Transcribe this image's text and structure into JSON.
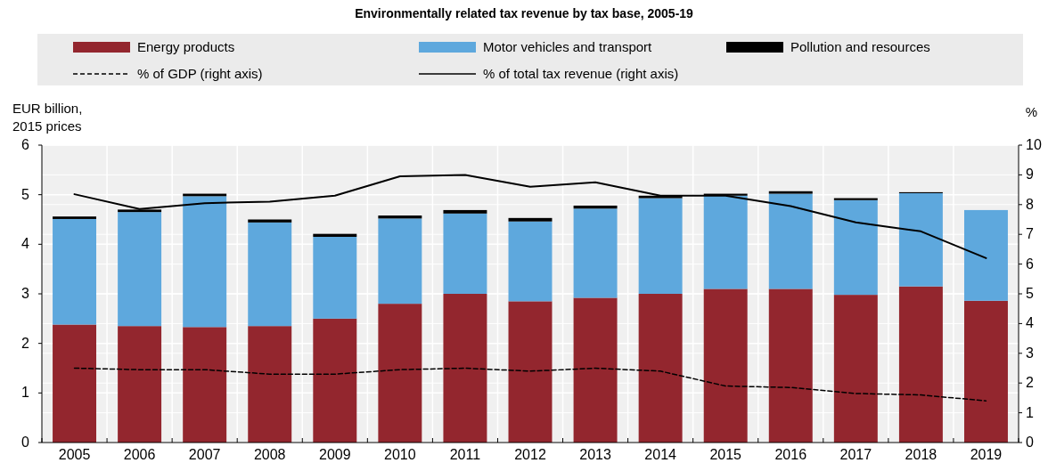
{
  "chart_data": {
    "type": "bar",
    "title": "Environmentally related tax revenue by tax base, 2005-19",
    "categories": [
      "2005",
      "2006",
      "2007",
      "2008",
      "2009",
      "2010",
      "2011",
      "2012",
      "2013",
      "2014",
      "2015",
      "2016",
      "2017",
      "2018",
      "2019"
    ],
    "stacked": true,
    "ylabel": "EUR billion, 2015 prices",
    "y2label": "%",
    "ylim": [
      0,
      6
    ],
    "yticks": [
      0,
      1,
      2,
      3,
      4,
      5,
      6
    ],
    "y2lim": [
      0,
      10
    ],
    "y2ticks": [
      0,
      1,
      2,
      3,
      4,
      5,
      6,
      7,
      8,
      9,
      10
    ],
    "grid": true,
    "legend": "top",
    "series": [
      {
        "name": "Energy products",
        "color": "#93262e",
        "values": [
          2.38,
          2.35,
          2.33,
          2.35,
          2.5,
          2.8,
          3.0,
          2.85,
          2.92,
          3.0,
          3.1,
          3.1,
          2.98,
          3.15,
          2.86
        ]
      },
      {
        "name": "Motor vehicles and transport",
        "color": "#5ea8dd",
        "values": [
          2.13,
          2.3,
          2.64,
          2.09,
          1.65,
          1.72,
          1.62,
          1.61,
          1.8,
          1.93,
          1.88,
          1.92,
          1.91,
          1.88,
          1.83
        ]
      },
      {
        "name": "Pollution and resources",
        "color": "#000000",
        "values": [
          0.05,
          0.05,
          0.05,
          0.06,
          0.06,
          0.06,
          0.07,
          0.07,
          0.06,
          0.05,
          0.04,
          0.05,
          0.04,
          0.02,
          0
        ]
      },
      {
        "name": "% of GDP (right axis)",
        "type": "line",
        "axis": "y2",
        "line_style": "dashed",
        "color": "#000000",
        "values": [
          2.5,
          2.45,
          2.45,
          2.3,
          2.3,
          2.45,
          2.5,
          2.4,
          2.5,
          2.4,
          1.9,
          1.85,
          1.65,
          1.6,
          1.4
        ]
      },
      {
        "name": "% of total tax revenue (right axis)",
        "type": "line",
        "axis": "y2",
        "line_style": "solid",
        "color": "#000000",
        "values": [
          8.35,
          7.85,
          8.05,
          8.1,
          8.3,
          8.95,
          9.0,
          8.6,
          8.75,
          8.3,
          8.3,
          7.95,
          7.4,
          7.1,
          6.2
        ]
      }
    ]
  }
}
